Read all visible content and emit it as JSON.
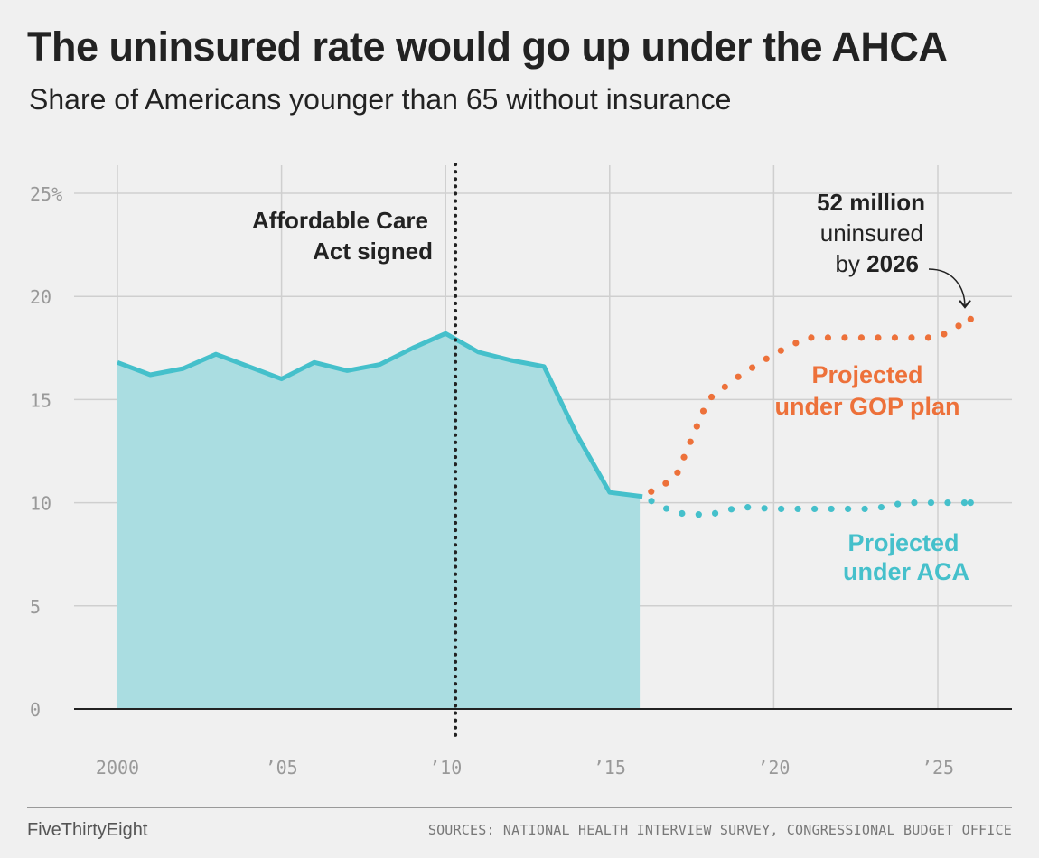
{
  "header": {
    "title": "The uninsured rate would go up under the AHCA",
    "subtitle": "Share of Americans younger than 65 without insurance"
  },
  "footer": {
    "brand": "FiveThirtyEight",
    "source": "SOURCES: NATIONAL HEALTH INTERVIEW SURVEY, CONGRESSIONAL BUDGET OFFICE"
  },
  "colors": {
    "background": "#f0f0f0",
    "historical": "#45c0cb",
    "historical_fill": "#aadde1",
    "gop": "#ed713a",
    "aca": "#45c0cb",
    "grid": "#cfcfcf"
  },
  "chart_data": {
    "type": "line",
    "xlim": [
      2000,
      2026
    ],
    "ylim": [
      0,
      25
    ],
    "grid": true,
    "x_ticks": [
      2000,
      2005,
      2010,
      2015,
      2020,
      2025
    ],
    "x_tick_labels": [
      "2000",
      "’05",
      "’10",
      "’15",
      "’20",
      "’25"
    ],
    "y_ticks": [
      0,
      5,
      10,
      15,
      20,
      25
    ],
    "y_tick_labels": [
      "0",
      "5",
      "10",
      "15",
      "20",
      "25%"
    ],
    "series": [
      {
        "style": "solid-area",
        "x": [
          2000,
          2001,
          2002,
          2003,
          2004,
          2005,
          2006,
          2007,
          2008,
          2009,
          2010,
          2011,
          2012,
          2013,
          2014,
          2015,
          2016
        ],
        "y": [
          16.8,
          16.2,
          16.5,
          17.2,
          16.6,
          16.0,
          16.8,
          16.4,
          16.7,
          17.5,
          18.2,
          17.3,
          16.9,
          16.6,
          13.3,
          10.5,
          10.3
        ]
      },
      {
        "name": "Projected under GOP plan",
        "style": "dotted",
        "x": [
          2016,
          2017,
          2018,
          2019,
          2020,
          2021,
          2022,
          2023,
          2024,
          2025,
          2026
        ],
        "y": [
          10.3,
          11.2,
          15.0,
          16.2,
          17.2,
          18.0,
          18.0,
          18.0,
          18.0,
          18.0,
          18.9
        ]
      },
      {
        "name": "Projected under ACA",
        "style": "dotted",
        "x": [
          2016,
          2017,
          2018,
          2019,
          2020,
          2021,
          2022,
          2023,
          2024,
          2025,
          2026
        ],
        "y": [
          10.3,
          9.5,
          9.4,
          9.8,
          9.7,
          9.7,
          9.7,
          9.7,
          10.0,
          10.0,
          10.0
        ]
      }
    ],
    "vertical_marker": {
      "x": 2010.3,
      "label_line1": "Affordable Care",
      "label_line2": "Act signed"
    },
    "annotations": {
      "gop_line1": "Projected",
      "gop_line2": "under GOP plan",
      "aca_line1": "Projected",
      "aca_line2": "under ACA",
      "callout_bold": "52 million",
      "callout_line2": "uninsured",
      "callout_prefix": "by ",
      "callout_year": "2026"
    }
  }
}
